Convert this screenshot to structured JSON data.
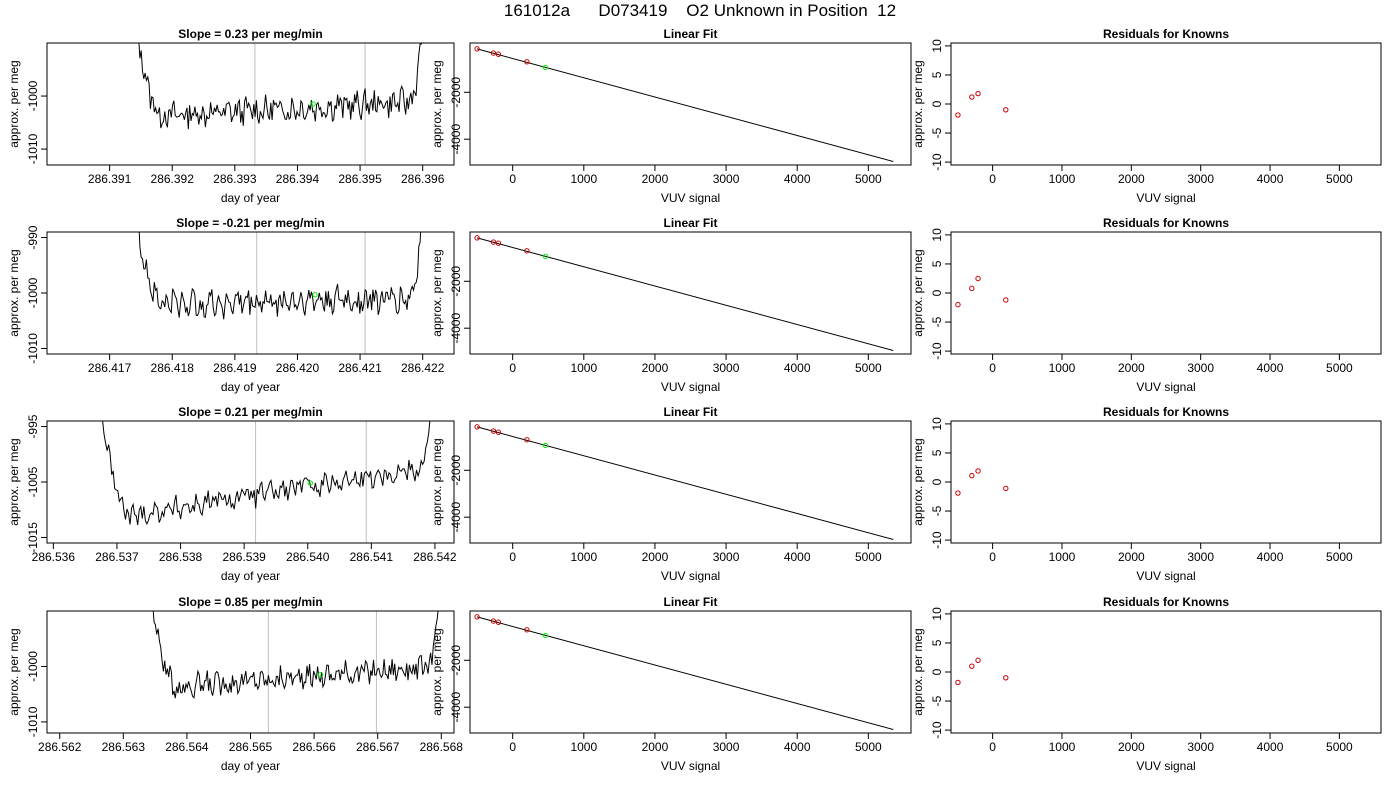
{
  "title": "161012a      D073419    O2 Unknown in Position  12",
  "colors": {
    "line": "#000000",
    "unknown": "#00ee00",
    "known": "#cc0000",
    "vline": "#bebebe",
    "frame": "#000000"
  },
  "chart_data": [
    {
      "type": "line",
      "panel": "timeseries",
      "row": 0,
      "title": "Slope =  0.23  per meg/min",
      "xlabel": "day of year",
      "ylabel": "approx. per meg",
      "xlim": [
        286.39,
        286.3965
      ],
      "ylim": [
        -1013,
        -990
      ],
      "xticks": [
        "286.391",
        "286.392",
        "286.393",
        "286.394",
        "286.395",
        "286.396"
      ],
      "yticks": [
        "-1010",
        "-1000"
      ],
      "trace": {
        "x_start": 286.3914,
        "x_end": 286.396,
        "start_y": -990,
        "base_y": -1004,
        "end_y": -1002,
        "slope_y": 3,
        "noise": 2.2
      },
      "vlines": [
        286.39332,
        286.39508
      ],
      "unknown_point": {
        "x": 286.39425,
        "y": -1001.5
      }
    },
    {
      "type": "scatter",
      "panel": "linear-fit",
      "row": 0,
      "title": "Linear Fit",
      "xlabel": "VUV signal",
      "ylabel": "approx. per meg",
      "xlim": [
        -600,
        5600
      ],
      "ylim": [
        -5100,
        100
      ],
      "xticks": [
        "0",
        "1000",
        "2000",
        "3000",
        "4000",
        "5000"
      ],
      "yticks": [
        "-4000",
        "-2000"
      ],
      "fit_line": {
        "x": [
          -500,
          5350
        ],
        "y": [
          -150,
          -4950
        ]
      },
      "knowns": {
        "x": [
          -500,
          -270,
          -200,
          200
        ],
        "y": [
          -150,
          -330,
          -380,
          -700
        ]
      },
      "unknown": {
        "x": 460,
        "y": -940
      }
    },
    {
      "type": "scatter",
      "panel": "residuals",
      "row": 0,
      "title": "Residuals for Knowns",
      "xlabel": "VUV signal",
      "ylabel": "approx. per meg",
      "xlim": [
        -600,
        5600
      ],
      "ylim": [
        -10.5,
        10.5
      ],
      "xticks": [
        "0",
        "1000",
        "2000",
        "3000",
        "4000",
        "5000"
      ],
      "yticks": [
        "-10",
        "-5",
        "0",
        "5",
        "10"
      ],
      "residuals": {
        "x": [
          -500,
          -300,
          -210,
          190
        ],
        "y": [
          -1.9,
          1.2,
          1.8,
          -1.0
        ]
      }
    },
    {
      "type": "line",
      "panel": "timeseries",
      "row": 1,
      "title": "Slope =  -0.21  per meg/min",
      "xlabel": "day of year",
      "ylabel": "approx. per meg",
      "xlim": [
        286.416,
        286.4225
      ],
      "ylim": [
        -1011,
        -989
      ],
      "xticks": [
        "286.417",
        "286.418",
        "286.419",
        "286.420",
        "286.421",
        "286.422"
      ],
      "yticks": [
        "-1010",
        "-1000",
        "-990"
      ],
      "trace": {
        "x_start": 286.4174,
        "x_end": 286.422,
        "start_y": -989,
        "base_y": -1002,
        "end_y": -1000,
        "slope_y": 1,
        "noise": 2.2
      },
      "vlines": [
        286.41935,
        286.42108
      ],
      "unknown_point": {
        "x": 286.42028,
        "y": -1000.3
      }
    },
    {
      "type": "scatter",
      "panel": "linear-fit",
      "row": 1,
      "title": "Linear Fit",
      "xlabel": "VUV signal",
      "ylabel": "approx. per meg",
      "xlim": [
        -600,
        5600
      ],
      "ylim": [
        -5100,
        100
      ],
      "xticks": [
        "0",
        "1000",
        "2000",
        "3000",
        "4000",
        "5000"
      ],
      "yticks": [
        "-4000",
        "-2000"
      ],
      "fit_line": {
        "x": [
          -500,
          5350
        ],
        "y": [
          -150,
          -4950
        ]
      },
      "knowns": {
        "x": [
          -500,
          -270,
          -200,
          200
        ],
        "y": [
          -150,
          -330,
          -380,
          -700
        ]
      },
      "unknown": {
        "x": 460,
        "y": -940
      }
    },
    {
      "type": "scatter",
      "panel": "residuals",
      "row": 1,
      "title": "Residuals for Knowns",
      "xlabel": "VUV signal",
      "ylabel": "approx. per meg",
      "xlim": [
        -600,
        5600
      ],
      "ylim": [
        -10.5,
        10.5
      ],
      "xticks": [
        "0",
        "1000",
        "2000",
        "3000",
        "4000",
        "5000"
      ],
      "yticks": [
        "-10",
        "-5",
        "0",
        "5",
        "10"
      ],
      "residuals": {
        "x": [
          -500,
          -300,
          -210,
          190
        ],
        "y": [
          -2.0,
          0.8,
          2.5,
          -1.2
        ]
      }
    },
    {
      "type": "line",
      "panel": "timeseries",
      "row": 2,
      "title": "Slope =  0.21  per meg/min",
      "xlabel": "day of year",
      "ylabel": "approx. per meg",
      "xlim": [
        286.5359,
        286.5423
      ],
      "ylim": [
        -1016,
        -994
      ],
      "xticks": [
        "286.536",
        "286.537",
        "286.538",
        "286.539",
        "286.540",
        "286.541",
        "286.542"
      ],
      "yticks": [
        "-1015",
        "-1005",
        "-995"
      ],
      "trace": {
        "x_start": 286.5367,
        "x_end": 286.542,
        "start_y": -994,
        "base_y": -1012,
        "end_y": -1000,
        "slope_y": 10,
        "noise": 1.8
      },
      "vlines": [
        286.53918,
        286.54092
      ],
      "unknown_point": {
        "x": 286.54004,
        "y": -1005.2
      }
    },
    {
      "type": "scatter",
      "panel": "linear-fit",
      "row": 2,
      "title": "Linear Fit",
      "xlabel": "VUV signal",
      "ylabel": "approx. per meg",
      "xlim": [
        -600,
        5600
      ],
      "ylim": [
        -5100,
        100
      ],
      "xticks": [
        "0",
        "1000",
        "2000",
        "3000",
        "4000",
        "5000"
      ],
      "yticks": [
        "-4000",
        "-2000"
      ],
      "fit_line": {
        "x": [
          -500,
          5350
        ],
        "y": [
          -150,
          -4950
        ]
      },
      "knowns": {
        "x": [
          -500,
          -270,
          -200,
          200
        ],
        "y": [
          -150,
          -330,
          -380,
          -700
        ]
      },
      "unknown": {
        "x": 460,
        "y": -940
      }
    },
    {
      "type": "scatter",
      "panel": "residuals",
      "row": 2,
      "title": "Residuals for Knowns",
      "xlabel": "VUV signal",
      "ylabel": "approx. per meg",
      "xlim": [
        -600,
        5600
      ],
      "ylim": [
        -10.5,
        10.5
      ],
      "xticks": [
        "0",
        "1000",
        "2000",
        "3000",
        "4000",
        "5000"
      ],
      "yticks": [
        "-10",
        "-5",
        "0",
        "5",
        "10"
      ],
      "residuals": {
        "x": [
          -500,
          -300,
          -210,
          190
        ],
        "y": [
          -1.9,
          1.1,
          1.9,
          -1.1
        ]
      }
    },
    {
      "type": "line",
      "panel": "timeseries",
      "row": 3,
      "title": "Slope =  0.85  per meg/min",
      "xlabel": "day of year",
      "ylabel": "approx. per meg",
      "xlim": [
        286.5618,
        286.5682
      ],
      "ylim": [
        -1012,
        -990
      ],
      "xticks": [
        "286.562",
        "286.563",
        "286.564",
        "286.565",
        "286.566",
        "286.567",
        "286.568"
      ],
      "yticks": [
        "-1010",
        "-1000"
      ],
      "trace": {
        "x_start": 286.5634,
        "x_end": 286.568,
        "start_y": -990,
        "base_y": -1004,
        "end_y": -998,
        "slope_y": 4,
        "noise": 1.8
      },
      "vlines": [
        286.56528,
        286.56698
      ],
      "unknown_point": {
        "x": 286.5661,
        "y": -1001.5
      }
    },
    {
      "type": "scatter",
      "panel": "linear-fit",
      "row": 3,
      "title": "Linear Fit",
      "xlabel": "VUV signal",
      "ylabel": "approx. per meg",
      "xlim": [
        -600,
        5600
      ],
      "ylim": [
        -5100,
        100
      ],
      "xticks": [
        "0",
        "1000",
        "2000",
        "3000",
        "4000",
        "5000"
      ],
      "yticks": [
        "-4000",
        "-2000"
      ],
      "fit_line": {
        "x": [
          -500,
          5350
        ],
        "y": [
          -150,
          -4950
        ]
      },
      "knowns": {
        "x": [
          -500,
          -270,
          -200,
          200
        ],
        "y": [
          -150,
          -330,
          -380,
          -700
        ]
      },
      "unknown": {
        "x": 460,
        "y": -940
      }
    },
    {
      "type": "scatter",
      "panel": "residuals",
      "row": 3,
      "title": "Residuals for Knowns",
      "xlabel": "VUV signal",
      "ylabel": "approx. per meg",
      "xlim": [
        -600,
        5600
      ],
      "ylim": [
        -10.5,
        10.5
      ],
      "xticks": [
        "0",
        "1000",
        "2000",
        "3000",
        "4000",
        "5000"
      ],
      "yticks": [
        "-10",
        "-5",
        "0",
        "5",
        "10"
      ],
      "residuals": {
        "x": [
          -500,
          -300,
          -210,
          190
        ],
        "y": [
          -1.8,
          1.0,
          2.0,
          -1.0
        ]
      }
    }
  ]
}
